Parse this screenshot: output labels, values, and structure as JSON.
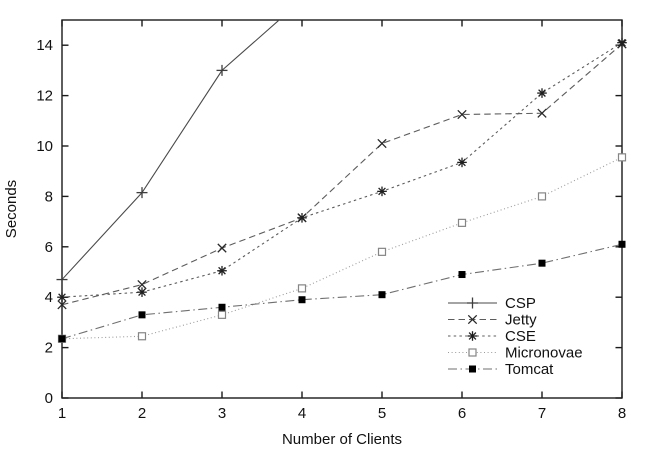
{
  "figure": {
    "background": "#ffffff"
  },
  "chart_data": {
    "type": "line",
    "title": "",
    "xlabel": "Number of Clients",
    "ylabel": "Seconds",
    "xlim": [
      1,
      8
    ],
    "ylim": [
      0,
      15
    ],
    "xticks": [
      1,
      2,
      3,
      4,
      5,
      6,
      7,
      8
    ],
    "yticks": [
      0,
      2,
      4,
      6,
      8,
      10,
      12,
      14
    ],
    "grid": false,
    "legend_position": "lower-right",
    "legend_box": false,
    "x": [
      1,
      2,
      3,
      4,
      5,
      6,
      7,
      8
    ],
    "series": [
      {
        "name": "CSP",
        "legend_label": "CSP",
        "marker": "plus",
        "line_style": "solid",
        "line_color": "#4a4a4a",
        "marker_color": "#3d3d3d",
        "values": [
          4.7,
          8.15,
          13.0,
          15.8,
          null,
          null,
          null,
          null
        ],
        "clipped_at_top": true
      },
      {
        "name": "Jetty",
        "legend_label": "Jetty",
        "marker": "x",
        "line_style": "dashed",
        "line_color": "#5c5c5c",
        "marker_color": "#2a2a2a",
        "values": [
          3.7,
          4.5,
          5.95,
          7.15,
          10.1,
          11.25,
          11.3,
          14.05
        ]
      },
      {
        "name": "CSE",
        "legend_label": "CSE",
        "marker": "asterisk",
        "line_style": "dotted",
        "line_color": "#5c5c5c",
        "marker_color": "#1f1f1f",
        "values": [
          4.0,
          4.2,
          5.05,
          7.15,
          8.2,
          9.35,
          12.1,
          14.1
        ]
      },
      {
        "name": "Micronovae",
        "legend_label": "Micronovae",
        "marker": "open-square",
        "line_style": "fine-dotted",
        "line_color": "#9b9b9b",
        "marker_color": "#858585",
        "values": [
          2.35,
          2.45,
          3.3,
          4.35,
          5.8,
          6.95,
          8.0,
          9.55
        ]
      },
      {
        "name": "Tomcat",
        "legend_label": "Tomcat",
        "marker": "filled-square",
        "line_style": "dash-dot",
        "line_color": "#6f6f6f",
        "marker_color": "#000000",
        "values": [
          2.35,
          3.3,
          3.6,
          3.9,
          4.1,
          4.9,
          5.35,
          6.1
        ]
      }
    ]
  }
}
